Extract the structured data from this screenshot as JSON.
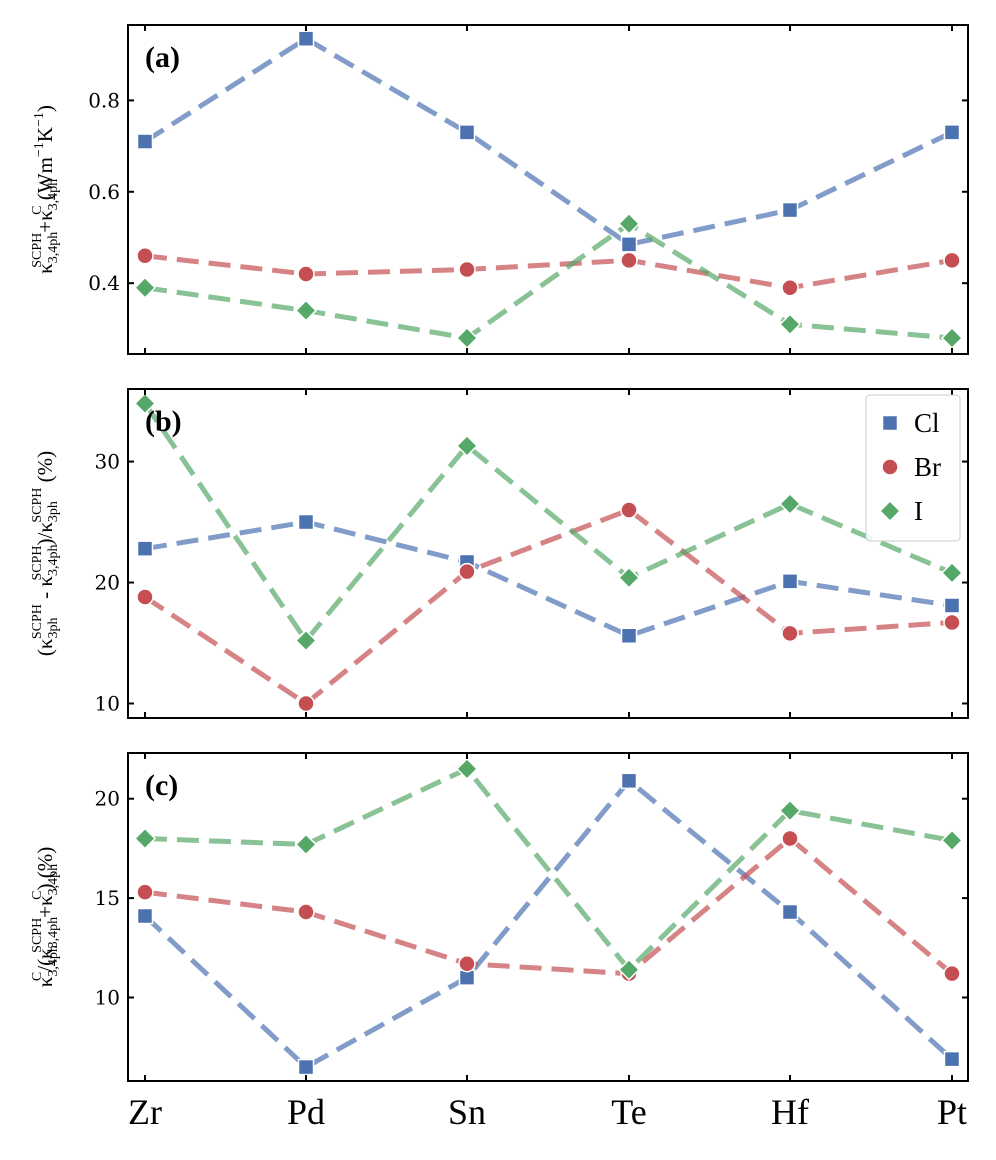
{
  "chart_data": [
    {
      "type": "line",
      "panel_label": "(a)",
      "categories": [
        "Zr",
        "Pd",
        "Sn",
        "Te",
        "Hf",
        "Pt"
      ],
      "ylabel_parts": [
        "κ",
        "3,4ph",
        "SCPH",
        "+κ",
        "3,4ph",
        "C",
        " (Wm",
        "−1",
        "K",
        "−1",
        ")"
      ],
      "ylim": [
        0.245,
        0.965
      ],
      "yticks": [
        0.4,
        0.6,
        0.8
      ],
      "ytick_labels": [
        "0.4",
        "0.6",
        "0.8"
      ],
      "series": [
        {
          "name": "Cl",
          "values": [
            0.71,
            0.935,
            0.73,
            0.485,
            0.56,
            0.73
          ]
        },
        {
          "name": "Br",
          "values": [
            0.46,
            0.42,
            0.43,
            0.45,
            0.39,
            0.45
          ]
        },
        {
          "name": "I",
          "values": [
            0.39,
            0.34,
            0.28,
            0.53,
            0.31,
            0.28
          ]
        }
      ]
    },
    {
      "type": "line",
      "panel_label": "(b)",
      "categories": [
        "Zr",
        "Pd",
        "Sn",
        "Te",
        "Hf",
        "Pt"
      ],
      "ylabel_parts": [
        "(κ",
        "3ph",
        "SCPH",
        " - κ",
        "3,4ph",
        "SCPH",
        ")/κ",
        "3ph",
        "SCPH",
        " (%)"
      ],
      "ylim": [
        8.8,
        36.0
      ],
      "yticks": [
        10,
        20,
        30
      ],
      "ytick_labels": [
        "10",
        "20",
        "30"
      ],
      "series": [
        {
          "name": "Cl",
          "values": [
            22.8,
            25.0,
            21.7,
            15.6,
            20.1,
            18.1
          ]
        },
        {
          "name": "Br",
          "values": [
            18.8,
            10.0,
            20.9,
            26.0,
            15.8,
            16.7
          ]
        },
        {
          "name": "I",
          "values": [
            34.8,
            15.2,
            31.3,
            20.4,
            26.5,
            20.8
          ]
        }
      ],
      "legend": {
        "position": "top-right",
        "entries": [
          "Cl",
          "Br",
          "I"
        ]
      }
    },
    {
      "type": "line",
      "panel_label": "(c)",
      "categories": [
        "Zr",
        "Pd",
        "Sn",
        "Te",
        "Hf",
        "Pt"
      ],
      "ylabel_parts": [
        "κ",
        "3,4ph",
        "C",
        "/(κ",
        "3,4ph",
        "SCPH",
        "+κ",
        "3,4ph",
        "C",
        ") (%)"
      ],
      "ylim": [
        5.8,
        22.3
      ],
      "yticks": [
        10,
        15,
        20
      ],
      "ytick_labels": [
        "10",
        "15",
        "20"
      ],
      "series": [
        {
          "name": "Cl",
          "values": [
            14.1,
            6.5,
            11.0,
            20.9,
            14.3,
            6.9
          ]
        },
        {
          "name": "Br",
          "values": [
            15.3,
            14.3,
            11.7,
            11.2,
            18.0,
            11.2
          ]
        },
        {
          "name": "I",
          "values": [
            18.0,
            17.7,
            21.5,
            11.4,
            19.4,
            17.9
          ]
        }
      ]
    }
  ],
  "colors": {
    "Cl": "#4c72b0",
    "Br": "#c44e52",
    "I": "#55a868"
  },
  "markers": {
    "Cl": "square",
    "Br": "circle",
    "I": "diamond"
  }
}
